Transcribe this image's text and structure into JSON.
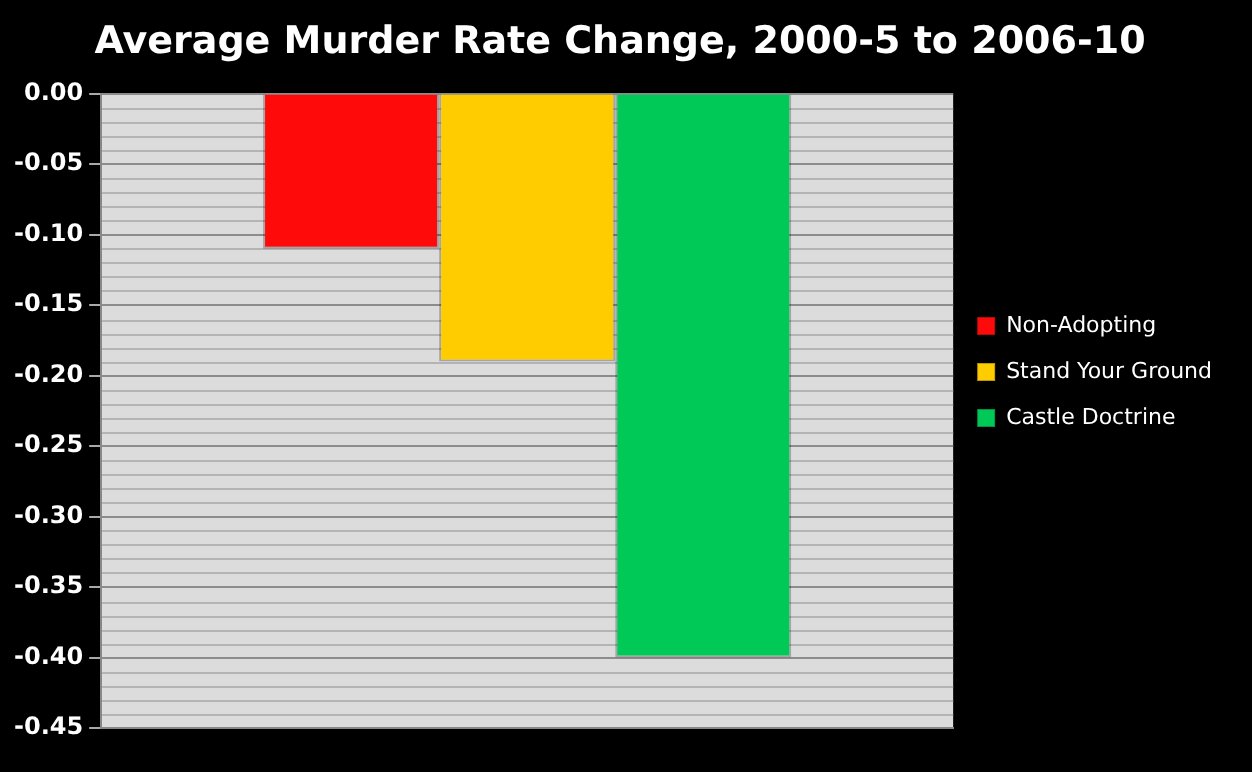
{
  "chart_data": {
    "type": "bar",
    "title": "Average Murder Rate Change, 2000-5 to 2006-10",
    "categories": [
      null
    ],
    "series": [
      {
        "name": "Non-Adopting",
        "color": "#ff0a0a",
        "values": [
          -0.11
        ]
      },
      {
        "name": "Stand Your Ground",
        "color": "#ffcc00",
        "values": [
          -0.19
        ]
      },
      {
        "name": "Castle Doctrine",
        "color": "#00c957",
        "values": [
          -0.4
        ]
      }
    ],
    "ylim": [
      -0.45,
      0
    ],
    "yticks": [
      {
        "value": 0,
        "label": "0.00"
      },
      {
        "value": -0.05,
        "label": "-0.05"
      },
      {
        "value": -0.1,
        "label": "-0.10"
      },
      {
        "value": -0.15,
        "label": "-0.15"
      },
      {
        "value": -0.2,
        "label": "-0.20"
      },
      {
        "value": -0.25,
        "label": "-0.25"
      },
      {
        "value": -0.3,
        "label": "-0.30"
      },
      {
        "value": -0.35,
        "label": "-0.35"
      },
      {
        "value": -0.4,
        "label": "-0.40"
      },
      {
        "value": -0.45,
        "label": "-0.45"
      }
    ],
    "grid": true,
    "legend": "right"
  }
}
